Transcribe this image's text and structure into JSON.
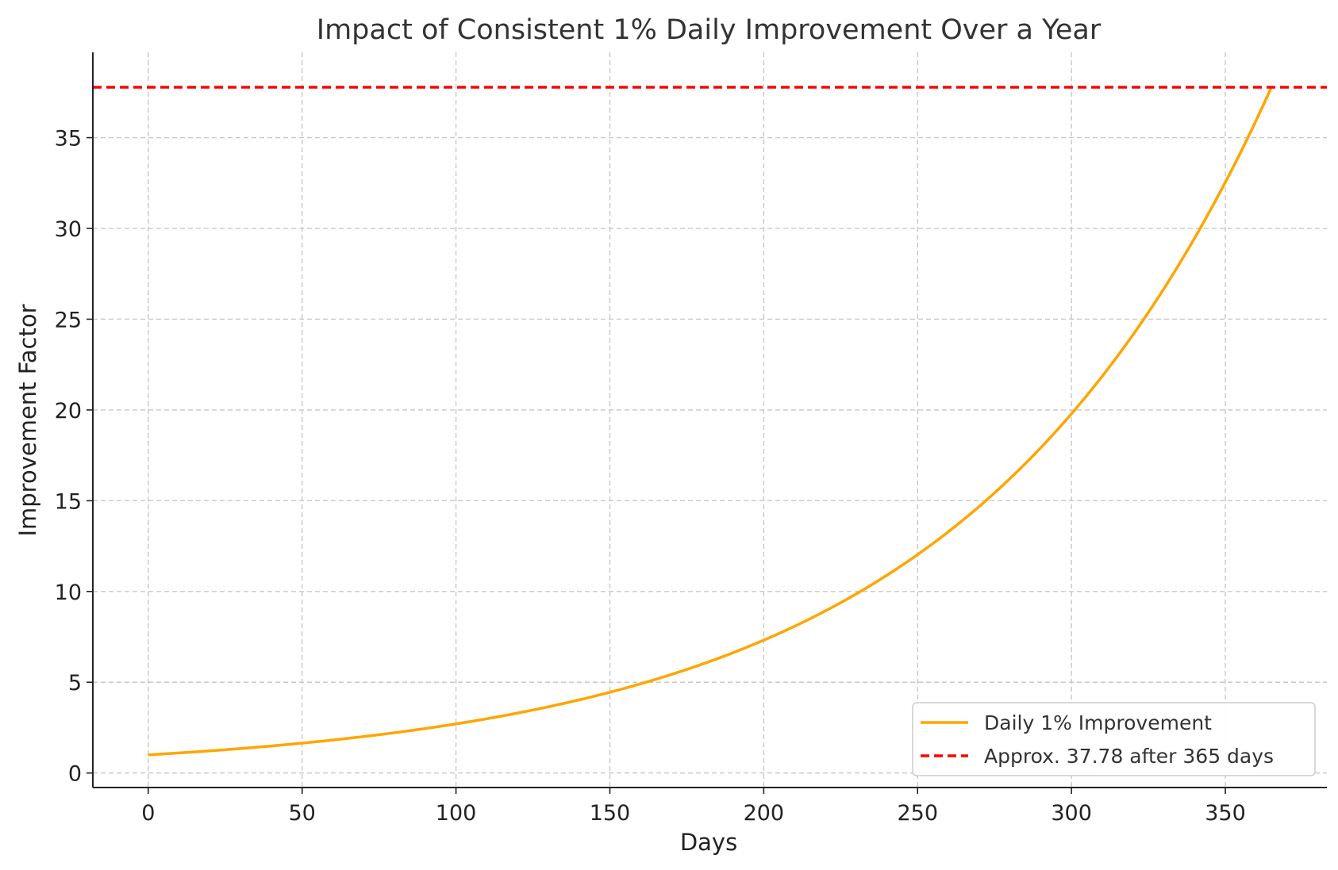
{
  "chart_data": {
    "type": "line",
    "title": "Impact of Consistent 1% Daily Improvement Over a Year",
    "xlabel": "Days",
    "ylabel": "Improvement Factor",
    "xlim": [
      -18,
      383
    ],
    "ylim": [
      -0.8,
      39.7
    ],
    "xticks": [
      0,
      50,
      100,
      150,
      200,
      250,
      300,
      350
    ],
    "yticks": [
      0,
      5,
      10,
      15,
      20,
      25,
      30,
      35
    ],
    "grid": true,
    "legend_position": "lower-right",
    "series": [
      {
        "name": "Daily 1% Improvement",
        "color": "#FFA500",
        "style": "solid",
        "growth_rate": 0.01,
        "x": [
          0,
          10,
          20,
          30,
          40,
          50,
          60,
          70,
          80,
          90,
          100,
          110,
          120,
          130,
          140,
          150,
          160,
          170,
          180,
          190,
          200,
          210,
          220,
          230,
          240,
          250,
          260,
          270,
          280,
          290,
          300,
          310,
          320,
          330,
          340,
          350,
          360,
          365
        ],
        "values": [
          1.0,
          1.1,
          1.22,
          1.35,
          1.49,
          1.64,
          1.82,
          2.01,
          2.22,
          2.45,
          2.7,
          2.99,
          3.3,
          3.65,
          4.03,
          4.45,
          4.92,
          5.43,
          6.0,
          6.63,
          7.32,
          8.09,
          8.94,
          9.87,
          10.91,
          12.05,
          13.31,
          14.7,
          16.24,
          17.94,
          19.79,
          21.87,
          24.16,
          26.69,
          29.48,
          32.57,
          35.95,
          37.78
        ]
      },
      {
        "name": "Approx. 37.78 after 365 days",
        "color": "#FF0000",
        "style": "dashed",
        "constant_y": 37.78
      }
    ]
  }
}
